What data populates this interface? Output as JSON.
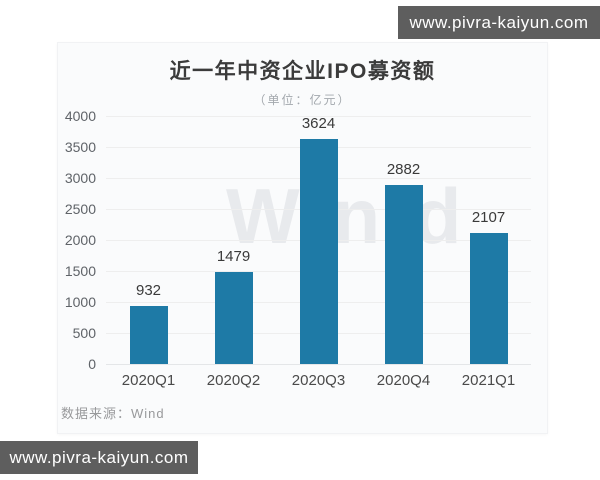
{
  "page": {
    "banner_top": "www.pivra-kaiyun.com",
    "banner_bottom": "www.pivra-kaiyun.com",
    "banner_bg": "#5e5e5e"
  },
  "chart_data": {
    "type": "bar",
    "title": "近一年中资企业IPO募资额",
    "subtitle": "（单位：亿元）",
    "categories": [
      "2020Q1",
      "2020Q2",
      "2020Q3",
      "2020Q4",
      "2021Q1"
    ],
    "values": [
      932,
      1479,
      3624,
      2882,
      2107
    ],
    "ylim": [
      0,
      4000
    ],
    "ytick_step": 500,
    "grid": true,
    "legend": "none",
    "bar_color": "#1e7aa6",
    "watermark": "Win.d",
    "source": "数据来源：Wind"
  }
}
